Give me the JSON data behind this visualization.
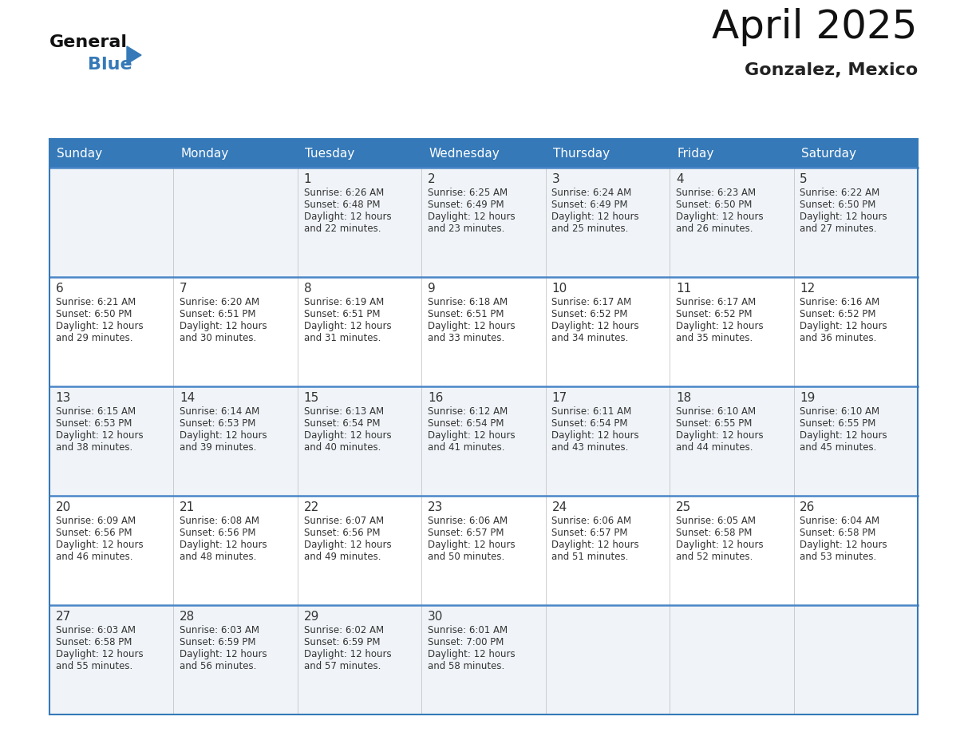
{
  "title": "April 2025",
  "subtitle": "Gonzalez, Mexico",
  "header_color": "#3579b8",
  "header_text_color": "#ffffff",
  "border_color": "#3579b8",
  "row_border_color": "#4a86c8",
  "text_color": "#333333",
  "cell_bg_odd": "#f0f4f8",
  "cell_bg_even": "#ffffff",
  "days_of_week": [
    "Sunday",
    "Monday",
    "Tuesday",
    "Wednesday",
    "Thursday",
    "Friday",
    "Saturday"
  ],
  "weeks": [
    [
      {
        "day": "",
        "sunrise": "",
        "sunset": "",
        "daylight1": "",
        "daylight2": ""
      },
      {
        "day": "",
        "sunrise": "",
        "sunset": "",
        "daylight1": "",
        "daylight2": ""
      },
      {
        "day": "1",
        "sunrise": "Sunrise: 6:26 AM",
        "sunset": "Sunset: 6:48 PM",
        "daylight1": "Daylight: 12 hours",
        "daylight2": "and 22 minutes."
      },
      {
        "day": "2",
        "sunrise": "Sunrise: 6:25 AM",
        "sunset": "Sunset: 6:49 PM",
        "daylight1": "Daylight: 12 hours",
        "daylight2": "and 23 minutes."
      },
      {
        "day": "3",
        "sunrise": "Sunrise: 6:24 AM",
        "sunset": "Sunset: 6:49 PM",
        "daylight1": "Daylight: 12 hours",
        "daylight2": "and 25 minutes."
      },
      {
        "day": "4",
        "sunrise": "Sunrise: 6:23 AM",
        "sunset": "Sunset: 6:50 PM",
        "daylight1": "Daylight: 12 hours",
        "daylight2": "and 26 minutes."
      },
      {
        "day": "5",
        "sunrise": "Sunrise: 6:22 AM",
        "sunset": "Sunset: 6:50 PM",
        "daylight1": "Daylight: 12 hours",
        "daylight2": "and 27 minutes."
      }
    ],
    [
      {
        "day": "6",
        "sunrise": "Sunrise: 6:21 AM",
        "sunset": "Sunset: 6:50 PM",
        "daylight1": "Daylight: 12 hours",
        "daylight2": "and 29 minutes."
      },
      {
        "day": "7",
        "sunrise": "Sunrise: 6:20 AM",
        "sunset": "Sunset: 6:51 PM",
        "daylight1": "Daylight: 12 hours",
        "daylight2": "and 30 minutes."
      },
      {
        "day": "8",
        "sunrise": "Sunrise: 6:19 AM",
        "sunset": "Sunset: 6:51 PM",
        "daylight1": "Daylight: 12 hours",
        "daylight2": "and 31 minutes."
      },
      {
        "day": "9",
        "sunrise": "Sunrise: 6:18 AM",
        "sunset": "Sunset: 6:51 PM",
        "daylight1": "Daylight: 12 hours",
        "daylight2": "and 33 minutes."
      },
      {
        "day": "10",
        "sunrise": "Sunrise: 6:17 AM",
        "sunset": "Sunset: 6:52 PM",
        "daylight1": "Daylight: 12 hours",
        "daylight2": "and 34 minutes."
      },
      {
        "day": "11",
        "sunrise": "Sunrise: 6:17 AM",
        "sunset": "Sunset: 6:52 PM",
        "daylight1": "Daylight: 12 hours",
        "daylight2": "and 35 minutes."
      },
      {
        "day": "12",
        "sunrise": "Sunrise: 6:16 AM",
        "sunset": "Sunset: 6:52 PM",
        "daylight1": "Daylight: 12 hours",
        "daylight2": "and 36 minutes."
      }
    ],
    [
      {
        "day": "13",
        "sunrise": "Sunrise: 6:15 AM",
        "sunset": "Sunset: 6:53 PM",
        "daylight1": "Daylight: 12 hours",
        "daylight2": "and 38 minutes."
      },
      {
        "day": "14",
        "sunrise": "Sunrise: 6:14 AM",
        "sunset": "Sunset: 6:53 PM",
        "daylight1": "Daylight: 12 hours",
        "daylight2": "and 39 minutes."
      },
      {
        "day": "15",
        "sunrise": "Sunrise: 6:13 AM",
        "sunset": "Sunset: 6:54 PM",
        "daylight1": "Daylight: 12 hours",
        "daylight2": "and 40 minutes."
      },
      {
        "day": "16",
        "sunrise": "Sunrise: 6:12 AM",
        "sunset": "Sunset: 6:54 PM",
        "daylight1": "Daylight: 12 hours",
        "daylight2": "and 41 minutes."
      },
      {
        "day": "17",
        "sunrise": "Sunrise: 6:11 AM",
        "sunset": "Sunset: 6:54 PM",
        "daylight1": "Daylight: 12 hours",
        "daylight2": "and 43 minutes."
      },
      {
        "day": "18",
        "sunrise": "Sunrise: 6:10 AM",
        "sunset": "Sunset: 6:55 PM",
        "daylight1": "Daylight: 12 hours",
        "daylight2": "and 44 minutes."
      },
      {
        "day": "19",
        "sunrise": "Sunrise: 6:10 AM",
        "sunset": "Sunset: 6:55 PM",
        "daylight1": "Daylight: 12 hours",
        "daylight2": "and 45 minutes."
      }
    ],
    [
      {
        "day": "20",
        "sunrise": "Sunrise: 6:09 AM",
        "sunset": "Sunset: 6:56 PM",
        "daylight1": "Daylight: 12 hours",
        "daylight2": "and 46 minutes."
      },
      {
        "day": "21",
        "sunrise": "Sunrise: 6:08 AM",
        "sunset": "Sunset: 6:56 PM",
        "daylight1": "Daylight: 12 hours",
        "daylight2": "and 48 minutes."
      },
      {
        "day": "22",
        "sunrise": "Sunrise: 6:07 AM",
        "sunset": "Sunset: 6:56 PM",
        "daylight1": "Daylight: 12 hours",
        "daylight2": "and 49 minutes."
      },
      {
        "day": "23",
        "sunrise": "Sunrise: 6:06 AM",
        "sunset": "Sunset: 6:57 PM",
        "daylight1": "Daylight: 12 hours",
        "daylight2": "and 50 minutes."
      },
      {
        "day": "24",
        "sunrise": "Sunrise: 6:06 AM",
        "sunset": "Sunset: 6:57 PM",
        "daylight1": "Daylight: 12 hours",
        "daylight2": "and 51 minutes."
      },
      {
        "day": "25",
        "sunrise": "Sunrise: 6:05 AM",
        "sunset": "Sunset: 6:58 PM",
        "daylight1": "Daylight: 12 hours",
        "daylight2": "and 52 minutes."
      },
      {
        "day": "26",
        "sunrise": "Sunrise: 6:04 AM",
        "sunset": "Sunset: 6:58 PM",
        "daylight1": "Daylight: 12 hours",
        "daylight2": "and 53 minutes."
      }
    ],
    [
      {
        "day": "27",
        "sunrise": "Sunrise: 6:03 AM",
        "sunset": "Sunset: 6:58 PM",
        "daylight1": "Daylight: 12 hours",
        "daylight2": "and 55 minutes."
      },
      {
        "day": "28",
        "sunrise": "Sunrise: 6:03 AM",
        "sunset": "Sunset: 6:59 PM",
        "daylight1": "Daylight: 12 hours",
        "daylight2": "and 56 minutes."
      },
      {
        "day": "29",
        "sunrise": "Sunrise: 6:02 AM",
        "sunset": "Sunset: 6:59 PM",
        "daylight1": "Daylight: 12 hours",
        "daylight2": "and 57 minutes."
      },
      {
        "day": "30",
        "sunrise": "Sunrise: 6:01 AM",
        "sunset": "Sunset: 7:00 PM",
        "daylight1": "Daylight: 12 hours",
        "daylight2": "and 58 minutes."
      },
      {
        "day": "",
        "sunrise": "",
        "sunset": "",
        "daylight1": "",
        "daylight2": ""
      },
      {
        "day": "",
        "sunrise": "",
        "sunset": "",
        "daylight1": "",
        "daylight2": ""
      },
      {
        "day": "",
        "sunrise": "",
        "sunset": "",
        "daylight1": "",
        "daylight2": ""
      }
    ]
  ]
}
